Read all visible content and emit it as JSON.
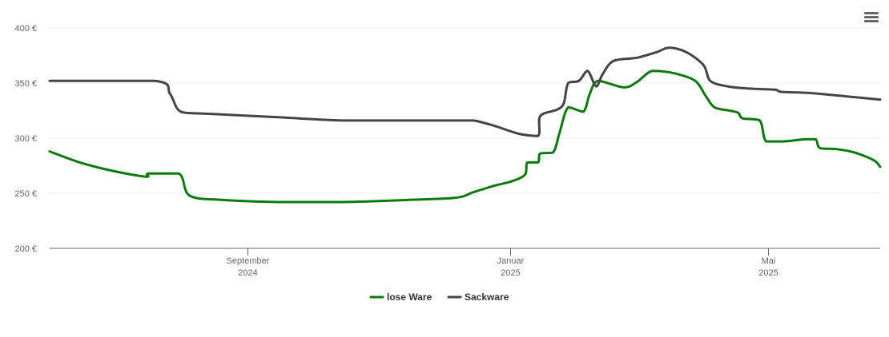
{
  "menu_icon": "hamburger-menu-icon",
  "chart_data": {
    "type": "line",
    "title": "",
    "xlabel": "",
    "ylabel": "",
    "ylim": [
      200,
      400
    ],
    "xlim": [
      "2024-06-01",
      "2025-06-22"
    ],
    "grid": true,
    "legend_position": "bottom-center",
    "y_ticks": [
      {
        "value": 200,
        "label": "200 €"
      },
      {
        "value": 250,
        "label": "250 €"
      },
      {
        "value": 300,
        "label": "300 €"
      },
      {
        "value": 350,
        "label": "350 €"
      },
      {
        "value": 400,
        "label": "400 €"
      }
    ],
    "x_ticks": [
      {
        "date": "2024-09-01",
        "line1": "September",
        "line2": "2024"
      },
      {
        "date": "2025-01-01",
        "line1": "Januar",
        "line2": "2025"
      },
      {
        "date": "2025-05-01",
        "line1": "Mai",
        "line2": "2025"
      }
    ],
    "series": [
      {
        "name": "lose Ware",
        "color": "#0a7a0a",
        "points": [
          [
            "2024-06-01",
            288
          ],
          [
            "2024-06-15",
            278
          ],
          [
            "2024-07-01",
            270
          ],
          [
            "2024-07-16",
            265
          ],
          [
            "2024-07-17",
            268
          ],
          [
            "2024-07-31",
            268
          ],
          [
            "2024-08-05",
            248
          ],
          [
            "2024-08-20",
            244
          ],
          [
            "2024-09-15",
            242
          ],
          [
            "2024-10-15",
            242
          ],
          [
            "2024-11-15",
            244
          ],
          [
            "2024-12-07",
            246
          ],
          [
            "2024-12-15",
            251
          ],
          [
            "2024-12-25",
            257
          ],
          [
            "2025-01-02",
            261
          ],
          [
            "2025-01-08",
            267
          ],
          [
            "2025-01-09",
            278
          ],
          [
            "2025-01-14",
            278
          ],
          [
            "2025-01-15",
            286
          ],
          [
            "2025-01-21",
            287
          ],
          [
            "2025-01-24",
            305
          ],
          [
            "2025-01-28",
            328
          ],
          [
            "2025-02-04",
            324
          ],
          [
            "2025-02-07",
            340
          ],
          [
            "2025-02-11",
            352
          ],
          [
            "2025-02-23",
            346
          ],
          [
            "2025-03-01",
            351
          ],
          [
            "2025-03-08",
            361
          ],
          [
            "2025-03-18",
            359
          ],
          [
            "2025-03-28",
            352
          ],
          [
            "2025-04-02",
            338
          ],
          [
            "2025-04-06",
            328
          ],
          [
            "2025-04-13",
            325
          ],
          [
            "2025-04-17",
            323
          ],
          [
            "2025-04-19",
            318
          ],
          [
            "2025-04-27",
            316
          ],
          [
            "2025-04-30",
            297
          ],
          [
            "2025-05-08",
            297
          ],
          [
            "2025-05-18",
            299
          ],
          [
            "2025-05-23",
            299
          ],
          [
            "2025-05-25",
            291
          ],
          [
            "2025-06-02",
            290
          ],
          [
            "2025-06-10",
            287
          ],
          [
            "2025-06-19",
            280
          ],
          [
            "2025-06-22",
            274
          ]
        ]
      },
      {
        "name": "Sackware",
        "color": "#444444",
        "points": [
          [
            "2024-06-01",
            352
          ],
          [
            "2024-07-20",
            352
          ],
          [
            "2024-07-27",
            340
          ],
          [
            "2024-08-01",
            324
          ],
          [
            "2024-08-15",
            322
          ],
          [
            "2024-09-15",
            319
          ],
          [
            "2024-10-15",
            316
          ],
          [
            "2024-11-15",
            316
          ],
          [
            "2024-12-06",
            316
          ],
          [
            "2024-12-07",
            316
          ],
          [
            "2024-12-15",
            316
          ],
          [
            "2024-12-25",
            311
          ],
          [
            "2025-01-05",
            304
          ],
          [
            "2025-01-14",
            302
          ],
          [
            "2025-01-15",
            320
          ],
          [
            "2025-01-23",
            326
          ],
          [
            "2025-01-26",
            332
          ],
          [
            "2025-01-28",
            350
          ],
          [
            "2025-02-02",
            352
          ],
          [
            "2025-02-06",
            361
          ],
          [
            "2025-02-10",
            347
          ],
          [
            "2025-02-13",
            358
          ],
          [
            "2025-02-18",
            370
          ],
          [
            "2025-03-01",
            373
          ],
          [
            "2025-03-10",
            378
          ],
          [
            "2025-03-16",
            382
          ],
          [
            "2025-03-24",
            378
          ],
          [
            "2025-04-01",
            366
          ],
          [
            "2025-04-04",
            352
          ],
          [
            "2025-04-12",
            347
          ],
          [
            "2025-04-22",
            345
          ],
          [
            "2025-05-04",
            344
          ],
          [
            "2025-05-07",
            342
          ],
          [
            "2025-05-20",
            341
          ],
          [
            "2025-06-06",
            338
          ],
          [
            "2025-06-22",
            335
          ]
        ]
      }
    ]
  }
}
